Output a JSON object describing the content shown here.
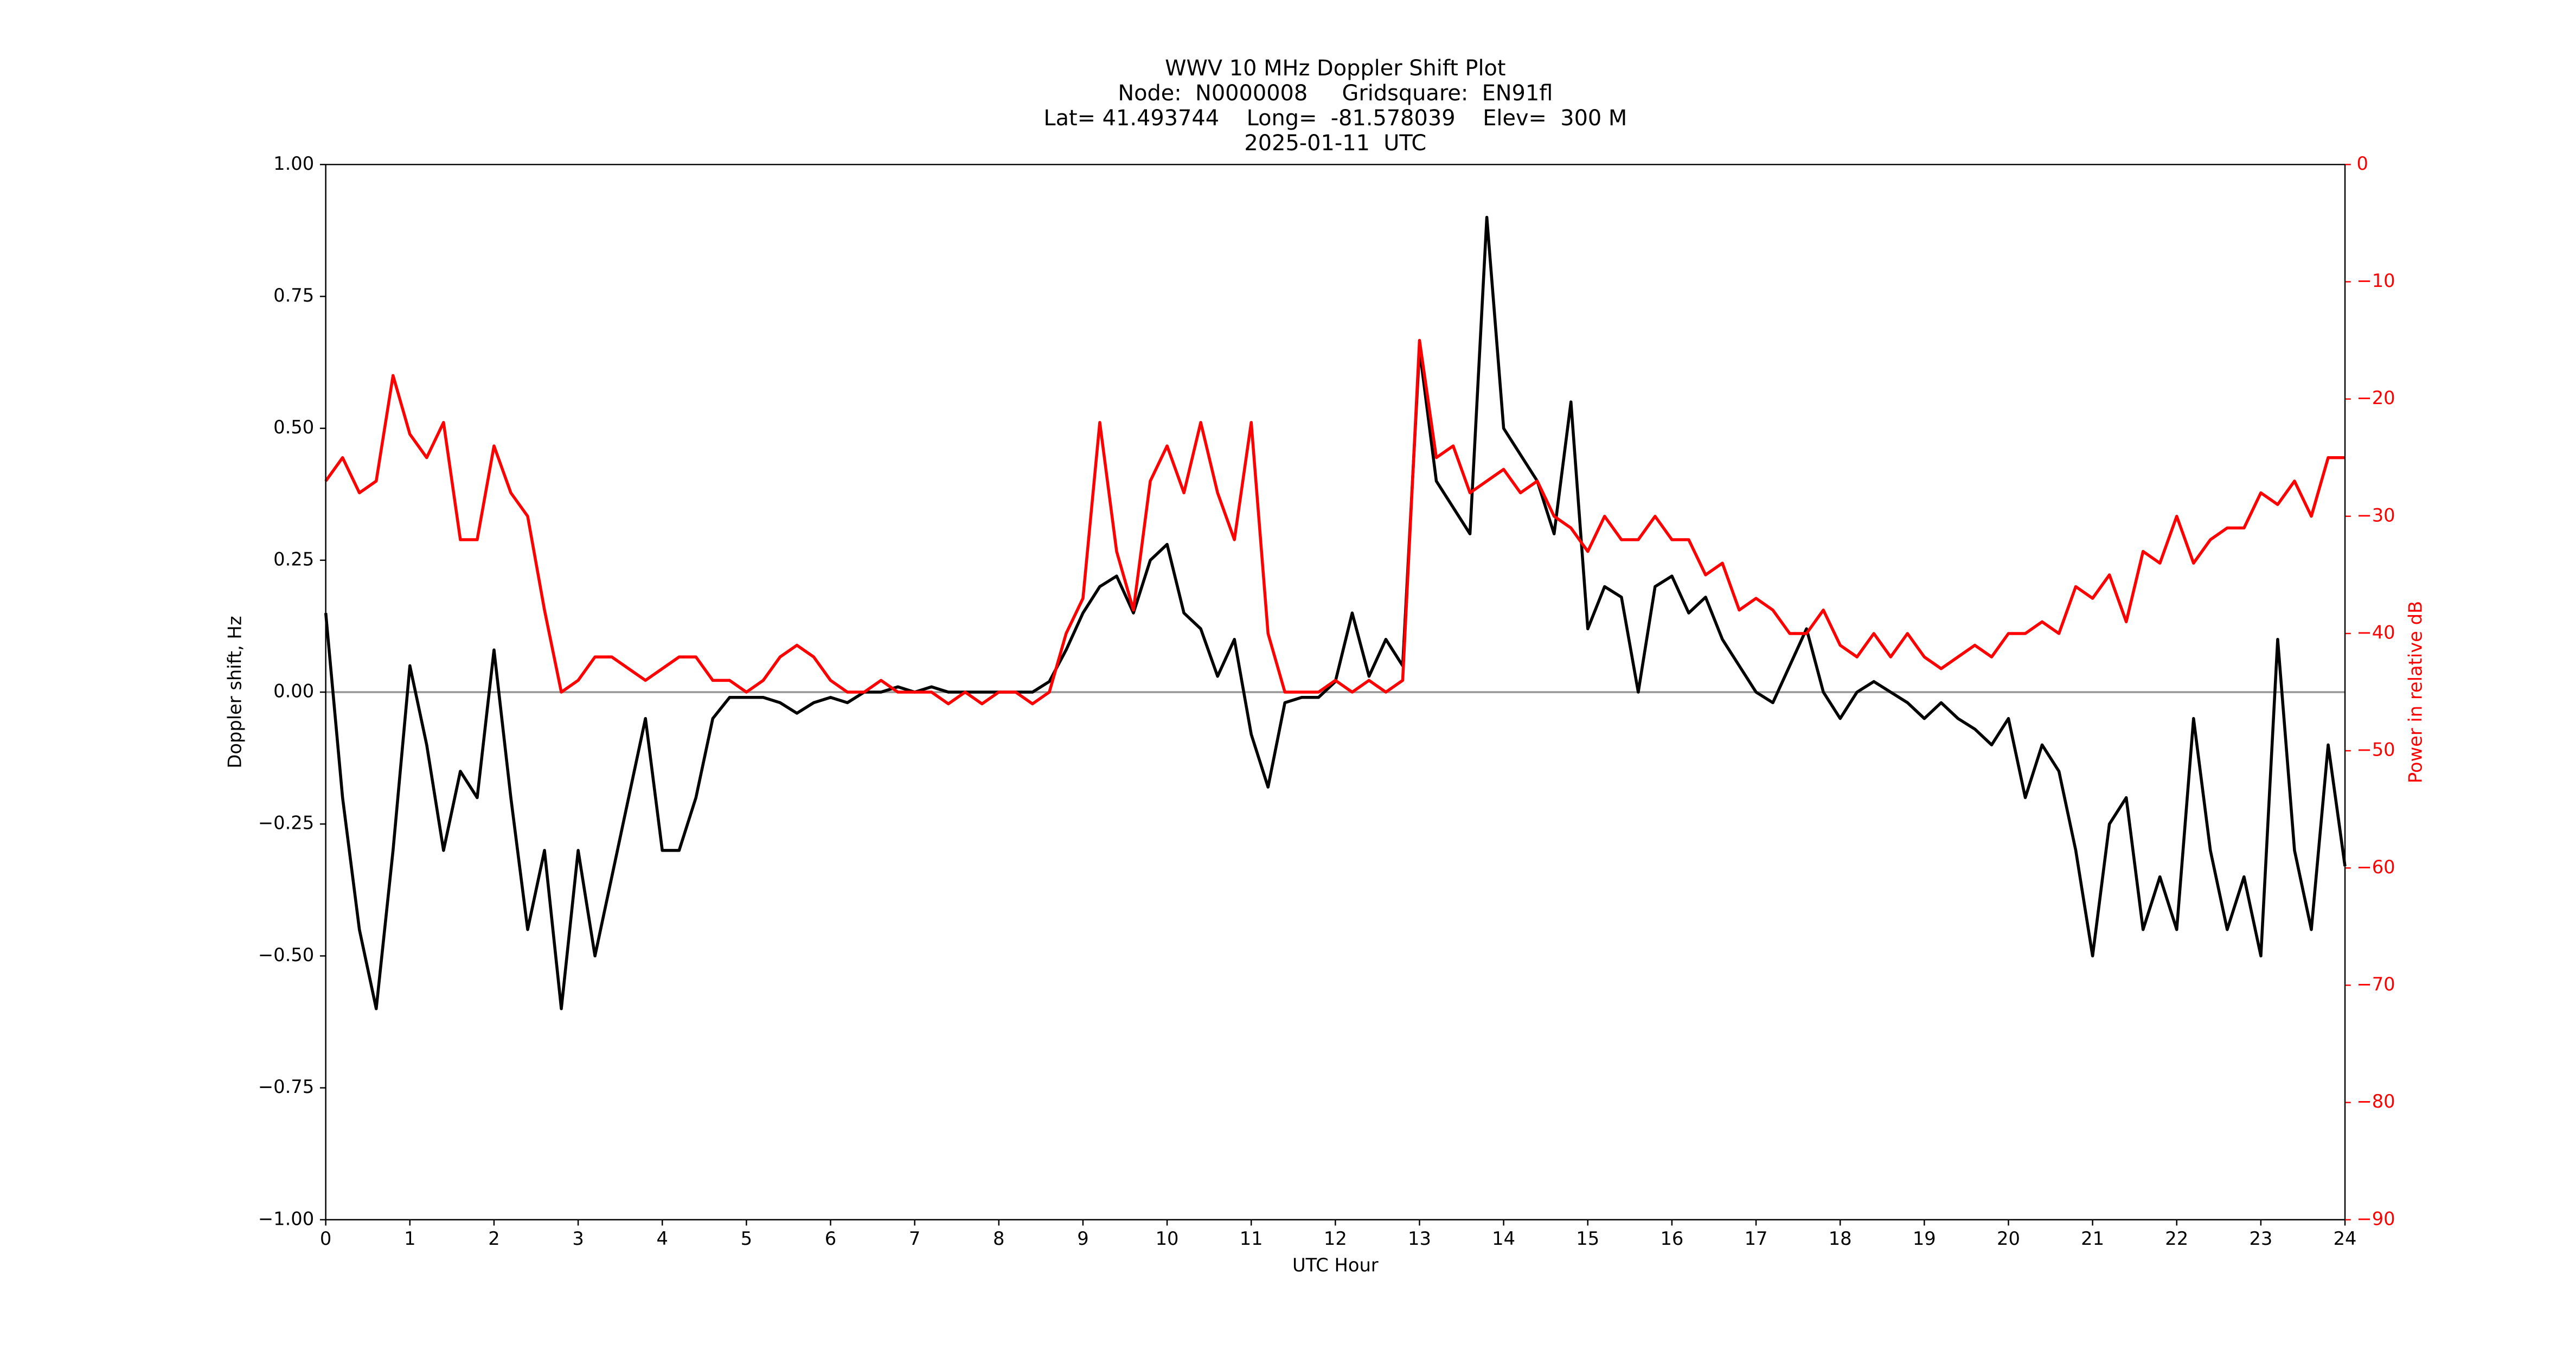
{
  "chart_data": {
    "type": "line",
    "title": [
      "WWV 10 MHz Doppler Shift Plot",
      "Node:  N0000008     Gridsquare:  EN91fl",
      "Lat= 41.493744    Long=  -81.578039    Elev=  300 M",
      "2025-01-11  UTC"
    ],
    "xlabel": "UTC Hour",
    "ylabel": "Doppler shift, Hz",
    "y2label": "Power in relative dB",
    "x": [
      0,
      0.2,
      0.4,
      0.6,
      0.8,
      1,
      1.2,
      1.4,
      1.6,
      1.8,
      2,
      2.2,
      2.4,
      2.6,
      2.8,
      3,
      3.2,
      3.4,
      3.6,
      3.8,
      4,
      4.2,
      4.4,
      4.6,
      4.8,
      5,
      5.2,
      5.4,
      5.6,
      5.8,
      6,
      6.2,
      6.4,
      6.6,
      6.8,
      7,
      7.2,
      7.4,
      7.6,
      7.8,
      8,
      8.2,
      8.4,
      8.6,
      8.8,
      9,
      9.2,
      9.4,
      9.6,
      9.8,
      10,
      10.2,
      10.4,
      10.6,
      10.8,
      11,
      11.2,
      11.4,
      11.6,
      11.8,
      12,
      12.2,
      12.4,
      12.6,
      12.8,
      13,
      13.2,
      13.4,
      13.6,
      13.8,
      14,
      14.2,
      14.4,
      14.6,
      14.8,
      15,
      15.2,
      15.4,
      15.6,
      15.8,
      16,
      16.2,
      16.4,
      16.6,
      16.8,
      17,
      17.2,
      17.4,
      17.6,
      17.8,
      18,
      18.2,
      18.4,
      18.6,
      18.8,
      19,
      19.2,
      19.4,
      19.6,
      19.8,
      20,
      20.2,
      20.4,
      20.6,
      20.8,
      21,
      21.2,
      21.4,
      21.6,
      21.8,
      22,
      22.2,
      22.4,
      22.6,
      22.8,
      23,
      23.2,
      23.4,
      23.6,
      23.8,
      24
    ],
    "series": [
      {
        "name": "Doppler shift",
        "color": "#000000",
        "axis": "y",
        "values": [
          0.15,
          -0.2,
          -0.45,
          -0.6,
          -0.3,
          0.05,
          -0.1,
          -0.3,
          -0.15,
          -0.2,
          0.08,
          -0.2,
          -0.45,
          -0.3,
          -0.6,
          -0.3,
          -0.5,
          -0.35,
          -0.2,
          -0.05,
          -0.3,
          -0.3,
          -0.2,
          -0.05,
          -0.01,
          -0.01,
          -0.01,
          -0.02,
          -0.04,
          -0.02,
          -0.01,
          -0.02,
          0,
          0,
          0.01,
          0,
          0.01,
          0,
          0,
          0,
          0,
          0,
          0,
          0.02,
          0.08,
          0.15,
          0.2,
          0.22,
          0.15,
          0.25,
          0.28,
          0.15,
          0.12,
          0.03,
          0.1,
          -0.08,
          -0.18,
          -0.02,
          -0.01,
          -0.01,
          0.02,
          0.15,
          0.03,
          0.1,
          0.05,
          0.65,
          0.4,
          0.35,
          0.3,
          0.9,
          0.5,
          0.45,
          0.4,
          0.3,
          0.55,
          0.12,
          0.2,
          0.18,
          0,
          0.2,
          0.22,
          0.15,
          0.18,
          0.1,
          0.05,
          0,
          -0.02,
          0.05,
          0.12,
          0,
          -0.05,
          0,
          0.02,
          0,
          -0.02,
          -0.05,
          -0.02,
          -0.05,
          -0.07,
          -0.1,
          -0.05,
          -0.2,
          -0.1,
          -0.15,
          -0.3,
          -0.5,
          -0.25,
          -0.2,
          -0.45,
          -0.35,
          -0.45,
          -0.05,
          -0.3,
          -0.45,
          -0.35,
          -0.5,
          0.1,
          -0.3,
          -0.45,
          -0.1,
          -0.33
        ]
      },
      {
        "name": "Power",
        "color": "#ff0000",
        "axis": "y2",
        "values": [
          -27,
          -25,
          -28,
          -27,
          -18,
          -23,
          -25,
          -22,
          -32,
          -32,
          -24,
          -28,
          -30,
          -38,
          -45,
          -44,
          -42,
          -42,
          -43,
          -44,
          -43,
          -42,
          -42,
          -44,
          -44,
          -45,
          -44,
          -42,
          -41,
          -42,
          -44,
          -45,
          -45,
          -44,
          -45,
          -45,
          -45,
          -46,
          -45,
          -46,
          -45,
          -45,
          -46,
          -45,
          -40,
          -37,
          -22,
          -33,
          -38,
          -27,
          -24,
          -28,
          -22,
          -28,
          -32,
          -22,
          -40,
          -45,
          -45,
          -45,
          -44,
          -45,
          -44,
          -45,
          -44,
          -15,
          -25,
          -24,
          -28,
          -27,
          -26,
          -28,
          -27,
          -30,
          -31,
          -33,
          -30,
          -32,
          -32,
          -30,
          -32,
          -32,
          -35,
          -34,
          -38,
          -37,
          -38,
          -40,
          -40,
          -38,
          -41,
          -42,
          -40,
          -42,
          -40,
          -42,
          -43,
          -42,
          -41,
          -42,
          -40,
          -40,
          -39,
          -40,
          -36,
          -37,
          -35,
          -39,
          -33,
          -34,
          -30,
          -34,
          -32,
          -31,
          -31,
          -28,
          -29,
          -27,
          -30,
          -25,
          -25
        ]
      }
    ],
    "xlim": [
      0,
      24
    ],
    "xticks": [
      0,
      1,
      2,
      3,
      4,
      5,
      6,
      7,
      8,
      9,
      10,
      11,
      12,
      13,
      14,
      15,
      16,
      17,
      18,
      19,
      20,
      21,
      22,
      23,
      24
    ],
    "ylim": [
      -1,
      1
    ],
    "yticks": [
      {
        "value": -1,
        "label": "−1.00"
      },
      {
        "value": -0.75,
        "label": "−0.75"
      },
      {
        "value": -0.5,
        "label": "−0.50"
      },
      {
        "value": -0.25,
        "label": "−0.25"
      },
      {
        "value": 0,
        "label": "0.00"
      },
      0.25,
      {
        "value": 0.5,
        "label": "0.50"
      },
      0.75,
      {
        "value": 1,
        "label": "1.00"
      }
    ],
    "y2lim": [
      -90,
      0
    ],
    "y2ticks": [
      {
        "value": -90,
        "label": "−90"
      },
      {
        "value": -80,
        "label": "−80"
      },
      {
        "value": -70,
        "label": "−70"
      },
      {
        "value": -60,
        "label": "−60"
      },
      {
        "value": -50,
        "label": "−50"
      },
      {
        "value": -40,
        "label": "−40"
      },
      {
        "value": -30,
        "label": "−30"
      },
      {
        "value": -20,
        "label": "−20"
      },
      {
        "value": -10,
        "label": "−10"
      },
      0
    ],
    "y2color": "#ff0000",
    "zero_line": true,
    "grid": false
  }
}
